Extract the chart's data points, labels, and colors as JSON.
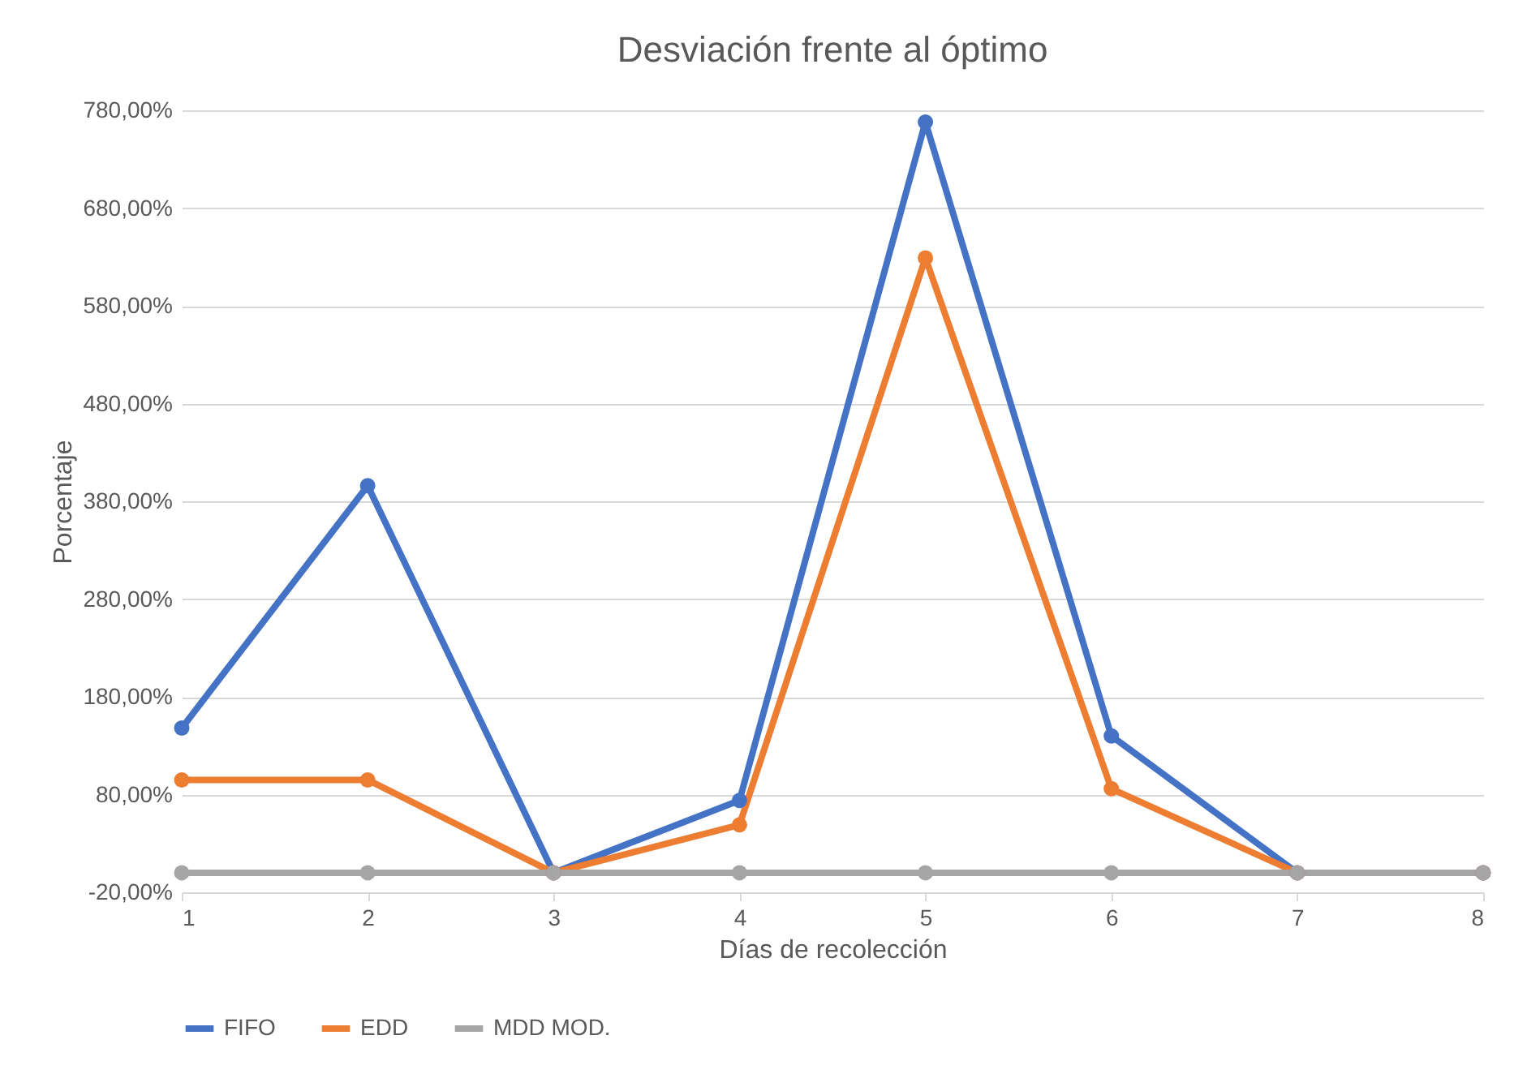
{
  "chart_data": {
    "type": "line",
    "title": "Desviación frente al óptimo",
    "xlabel": "Días de recolección",
    "ylabel": "Porcentaje",
    "x": [
      1,
      2,
      3,
      4,
      5,
      6,
      7,
      8
    ],
    "series": [
      {
        "name": "FIFO",
        "color": "#4472c4",
        "values": [
          148,
          396,
          0,
          74,
          768,
          140,
          0,
          0
        ]
      },
      {
        "name": "EDD",
        "color": "#ed7d31",
        "values": [
          95,
          95,
          0,
          49,
          629,
          86,
          0,
          0
        ]
      },
      {
        "name": "MDD MOD.",
        "color": "#a5a5a5",
        "values": [
          0,
          0,
          0,
          0,
          0,
          0,
          0,
          0
        ]
      }
    ],
    "xlim": [
      1,
      8
    ],
    "xticks": [
      1,
      2,
      3,
      4,
      5,
      6,
      7,
      8
    ],
    "ylim": [
      -20,
      780
    ],
    "yticks": [
      {
        "value": -20,
        "label": "-20,00%"
      },
      {
        "value": 80,
        "label": "80,00%"
      },
      {
        "value": 180,
        "label": "180,00%"
      },
      {
        "value": 280,
        "label": "280,00%"
      },
      {
        "value": 380,
        "label": "380,00%"
      },
      {
        "value": 480,
        "label": "480,00%"
      },
      {
        "value": 580,
        "label": "580,00%"
      },
      {
        "value": 680,
        "label": "680,00%"
      },
      {
        "value": 780,
        "label": "780,00%"
      }
    ],
    "grid": "y",
    "legend": "bottom",
    "marker": "circle",
    "line_style": "solid"
  }
}
